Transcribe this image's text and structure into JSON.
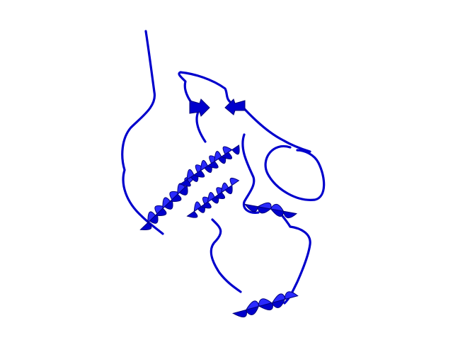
{
  "scene": {
    "subject": "protein-ribbon-cartoon",
    "background_color": "#ffffff",
    "ribbon_color": "#0000cc",
    "ribbon_dark": "#00007a",
    "ribbon_light": "#2a2aff"
  }
}
